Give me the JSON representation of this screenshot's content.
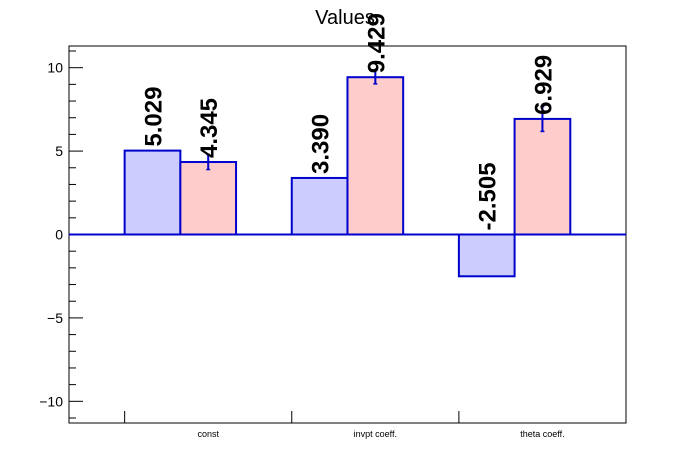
{
  "chart_data": {
    "type": "bar",
    "title": "Values",
    "xlabel": "",
    "ylabel": "",
    "ylim": [
      -11.3,
      11.3
    ],
    "yticks": [
      -10,
      -5,
      0,
      5,
      10
    ],
    "categories": [
      "const",
      "invpt coeff.",
      "theta coeff."
    ],
    "series": [
      {
        "values": [
          5.029,
          3.39,
          -2.505
        ],
        "labels": [
          "5.029",
          "3.390",
          "-2.505"
        ],
        "errors": [
          0,
          0,
          0
        ],
        "color": "#ccccff"
      },
      {
        "values": [
          4.345,
          9.429,
          6.929
        ],
        "labels": [
          "4.345",
          "9.429",
          "6.929"
        ],
        "errors": [
          0.45,
          0.4,
          0.75
        ],
        "color": "#ffcccc"
      }
    ],
    "edge_color": "#0000cc",
    "grid": false,
    "legend": "none"
  }
}
